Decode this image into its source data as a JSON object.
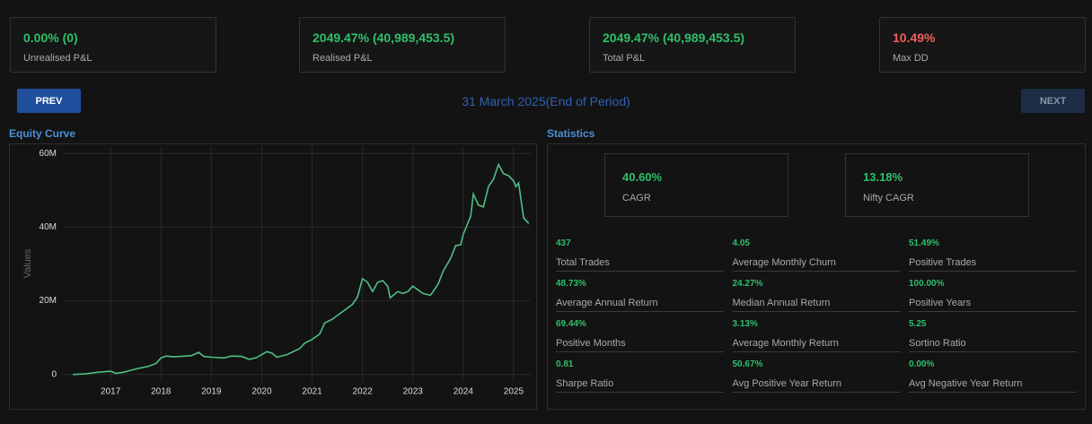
{
  "summary": [
    {
      "value": "0.00% (0)",
      "label": "Unrealised P&L"
    },
    {
      "value": "2049.47% (40,989,453.5)",
      "label": "Realised P&L"
    },
    {
      "value": "2049.47% (40,989,453.5)",
      "label": "Total P&L"
    },
    {
      "value": "10.49%",
      "label": "Max DD"
    }
  ],
  "nav": {
    "prev": "PREV",
    "next": "NEXT",
    "period": "31 March 2025(End of Period)"
  },
  "chart_data": {
    "type": "line",
    "title": "Equity Curve",
    "ylabel": "Values",
    "x": [
      2016.25,
      2016.5,
      2016.75,
      2017.0,
      2017.1,
      2017.25,
      2017.5,
      2017.75,
      2017.9,
      2018.0,
      2018.1,
      2018.25,
      2018.5,
      2018.6,
      2018.75,
      2018.85,
      2019.0,
      2019.25,
      2019.4,
      2019.6,
      2019.75,
      2019.9,
      2020.0,
      2020.1,
      2020.2,
      2020.3,
      2020.5,
      2020.75,
      2020.85,
      2021.0,
      2021.15,
      2021.25,
      2021.4,
      2021.6,
      2021.8,
      2021.9,
      2022.0,
      2022.1,
      2022.2,
      2022.3,
      2022.4,
      2022.5,
      2022.55,
      2022.7,
      2022.8,
      2022.9,
      2023.0,
      2023.1,
      2023.2,
      2023.35,
      2023.5,
      2023.6,
      2023.75,
      2023.85,
      2023.95,
      2024.0,
      2024.15,
      2024.2,
      2024.3,
      2024.4,
      2024.5,
      2024.6,
      2024.7,
      2024.8,
      2024.9,
      2025.0,
      2025.05,
      2025.1,
      2025.2,
      2025.3
    ],
    "series": [
      {
        "name": "Equity",
        "color": "#4fbf84",
        "values": [
          0,
          200000,
          600000,
          900000,
          300000,
          600000,
          1500000,
          2200000,
          3000000,
          4500000,
          5000000,
          4800000,
          5000000,
          5100000,
          6000000,
          4900000,
          4700000,
          4500000,
          5000000,
          4900000,
          4100000,
          4600000,
          5400000,
          6200000,
          5800000,
          4700000,
          5400000,
          7000000,
          8500000,
          9500000,
          11000000,
          14000000,
          15000000,
          17000000,
          19000000,
          21000000,
          26000000,
          25000000,
          22500000,
          25000000,
          25500000,
          24000000,
          20800000,
          22500000,
          22000000,
          22500000,
          24000000,
          23000000,
          22000000,
          21500000,
          24500000,
          28000000,
          31500000,
          35000000,
          35200000,
          38000000,
          43000000,
          49000000,
          46000000,
          45500000,
          51000000,
          53000000,
          57000000,
          54500000,
          54000000,
          52500000,
          51000000,
          52000000,
          42500000,
          41000000
        ]
      }
    ],
    "xlim": [
      2016.07,
      2025.34
    ],
    "xticks": [
      2017,
      2018,
      2019,
      2020,
      2021,
      2022,
      2023,
      2024,
      2025
    ],
    "ylim": [
      -2000000,
      62000000
    ],
    "yticks": [
      0,
      {
        "value": 20000000,
        "label": "20M"
      },
      {
        "value": 40000000,
        "label": "40M"
      },
      {
        "value": 60000000,
        "label": "60M"
      }
    ],
    "grid": true
  },
  "statistics": {
    "title": "Statistics",
    "cards": [
      {
        "value": "40.60%",
        "label": "CAGR"
      },
      {
        "value": "13.18%",
        "label": "Nifty CAGR"
      }
    ],
    "items": [
      {
        "value": "437",
        "label": "Total Trades"
      },
      {
        "value": "4.05",
        "label": "Average Monthly Churn"
      },
      {
        "value": "51.49%",
        "label": "Positive Trades"
      },
      {
        "value": "48.73%",
        "label": "Average Annual Return"
      },
      {
        "value": "24.27%",
        "label": "Median Annual Return"
      },
      {
        "value": "100.00%",
        "label": "Positive Years"
      },
      {
        "value": "69.44%",
        "label": "Positive Months"
      },
      {
        "value": "3.13%",
        "label": "Average Monthly Return"
      },
      {
        "value": "5.25",
        "label": "Sortino Ratio"
      },
      {
        "value": "0.81",
        "label": "Sharpe Ratio"
      },
      {
        "value": "50.67%",
        "label": "Avg Positive Year Return"
      },
      {
        "value": "0.00%",
        "label": "Avg Negative Year Return"
      }
    ]
  }
}
